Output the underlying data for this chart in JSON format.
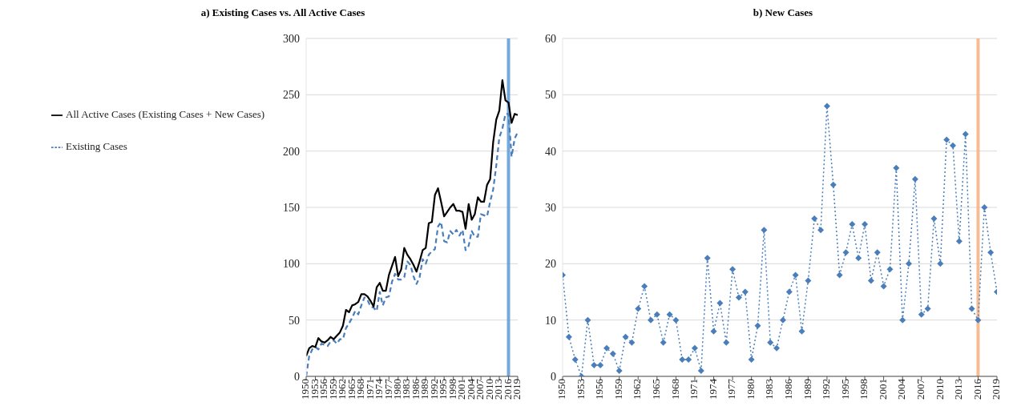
{
  "chart_data": [
    {
      "type": "line",
      "title": "a) Existing Cases vs. All Active Cases",
      "x": [
        1950,
        1951,
        1952,
        1953,
        1954,
        1955,
        1956,
        1957,
        1958,
        1959,
        1960,
        1961,
        1962,
        1963,
        1964,
        1965,
        1966,
        1967,
        1968,
        1969,
        1970,
        1971,
        1972,
        1973,
        1974,
        1975,
        1976,
        1977,
        1978,
        1979,
        1980,
        1981,
        1982,
        1983,
        1984,
        1985,
        1986,
        1987,
        1988,
        1989,
        1990,
        1991,
        1992,
        1993,
        1994,
        1995,
        1996,
        1997,
        1998,
        1999,
        2000,
        2001,
        2002,
        2003,
        2004,
        2005,
        2006,
        2007,
        2008,
        2009,
        2010,
        2011,
        2012,
        2013,
        2014,
        2015,
        2016,
        2017,
        2018,
        2019
      ],
      "series": [
        {
          "name": "Existing Cases",
          "color": "#4a7ebb",
          "line_style": "dashed",
          "values": [
            0,
            18,
            24,
            26,
            24,
            29,
            28,
            27,
            31,
            32,
            29,
            33,
            33,
            43,
            47,
            52,
            58,
            55,
            63,
            70,
            68,
            62,
            61,
            58,
            75,
            63,
            70,
            71,
            84,
            91,
            86,
            86,
            88,
            102,
            99,
            89,
            82,
            88,
            104,
            100,
            108,
            111,
            113,
            133,
            137,
            120,
            119,
            129,
            126,
            130,
            125,
            130,
            112,
            116,
            129,
            124,
            124,
            144,
            143,
            142,
            155,
            166,
            187,
            212,
            220,
            233,
            233,
            195,
            211,
            217
          ]
        },
        {
          "name": "All Active Cases (Existing Cases + New Cases)",
          "color": "#000000",
          "line_style": "solid",
          "values": [
            18,
            25,
            27,
            26,
            34,
            31,
            30,
            32,
            35,
            33,
            36,
            39,
            45,
            59,
            57,
            63,
            64,
            66,
            73,
            73,
            71,
            67,
            62,
            79,
            83,
            76,
            76,
            90,
            98,
            106,
            89,
            95,
            114,
            108,
            104,
            99,
            93,
            102,
            112,
            114,
            136,
            137,
            161,
            167,
            155,
            142,
            146,
            150,
            153,
            147,
            147,
            146,
            131,
            153,
            139,
            144,
            159,
            155,
            155,
            170,
            175,
            208,
            228,
            236,
            263,
            245,
            243,
            225,
            233,
            232
          ]
        }
      ],
      "xlim": [
        1950,
        2019
      ],
      "xticks": [
        1950,
        1953,
        1956,
        1959,
        1962,
        1965,
        1968,
        1971,
        1974,
        1977,
        1980,
        1983,
        1986,
        1989,
        1992,
        1995,
        1998,
        2001,
        2004,
        2007,
        2010,
        2013,
        2016,
        2019
      ],
      "ylim": [
        0,
        300
      ],
      "yticks": [
        0,
        50,
        100,
        150,
        200,
        250,
        300
      ],
      "grid": "y",
      "legend": "top left",
      "marker": "none",
      "ref_lines": [
        {
          "axis": "x",
          "value": 2016,
          "color": "#5b9bd5"
        }
      ]
    },
    {
      "type": "line",
      "title": "b) New Cases",
      "x": [
        1950,
        1951,
        1952,
        1953,
        1954,
        1955,
        1956,
        1957,
        1958,
        1959,
        1960,
        1961,
        1962,
        1963,
        1964,
        1965,
        1966,
        1967,
        1968,
        1969,
        1970,
        1971,
        1972,
        1973,
        1974,
        1975,
        1976,
        1977,
        1978,
        1979,
        1980,
        1981,
        1982,
        1983,
        1984,
        1985,
        1986,
        1987,
        1988,
        1989,
        1990,
        1991,
        1992,
        1993,
        1994,
        1995,
        1996,
        1997,
        1998,
        1999,
        2000,
        2001,
        2002,
        2003,
        2004,
        2005,
        2006,
        2007,
        2008,
        2009,
        2010,
        2011,
        2012,
        2013,
        2014,
        2015,
        2016,
        2017,
        2018,
        2019
      ],
      "series": [
        {
          "color": "#4a7ebb",
          "values": [
            18,
            7,
            3,
            0,
            10,
            2,
            2,
            5,
            4,
            1,
            7,
            6,
            12,
            16,
            10,
            11,
            6,
            11,
            10,
            3,
            3,
            5,
            1,
            21,
            8,
            13,
            6,
            19,
            14,
            15,
            3,
            9,
            26,
            6,
            5,
            10,
            15,
            18,
            8,
            17,
            28,
            26,
            48,
            34,
            18,
            22,
            27,
            21,
            27,
            17,
            22,
            16,
            19,
            37,
            10,
            20,
            35,
            11,
            12,
            28,
            20,
            42,
            41,
            24,
            43,
            12,
            10,
            30,
            22,
            15
          ]
        }
      ],
      "xlim": [
        1950,
        2019
      ],
      "xticks": [
        1950,
        1953,
        1956,
        1959,
        1962,
        1965,
        1968,
        1971,
        1974,
        1977,
        1980,
        1983,
        1986,
        1989,
        1992,
        1995,
        1998,
        2001,
        2004,
        2007,
        2010,
        2013,
        2016,
        2019
      ],
      "ylim": [
        0,
        60
      ],
      "yticks": [
        0,
        10,
        20,
        30,
        40,
        50,
        60
      ],
      "grid": "y",
      "marker": "diamond",
      "line_style": "dotted",
      "ref_lines": [
        {
          "axis": "x",
          "value": 2016,
          "color": "#f4b183"
        }
      ]
    }
  ]
}
